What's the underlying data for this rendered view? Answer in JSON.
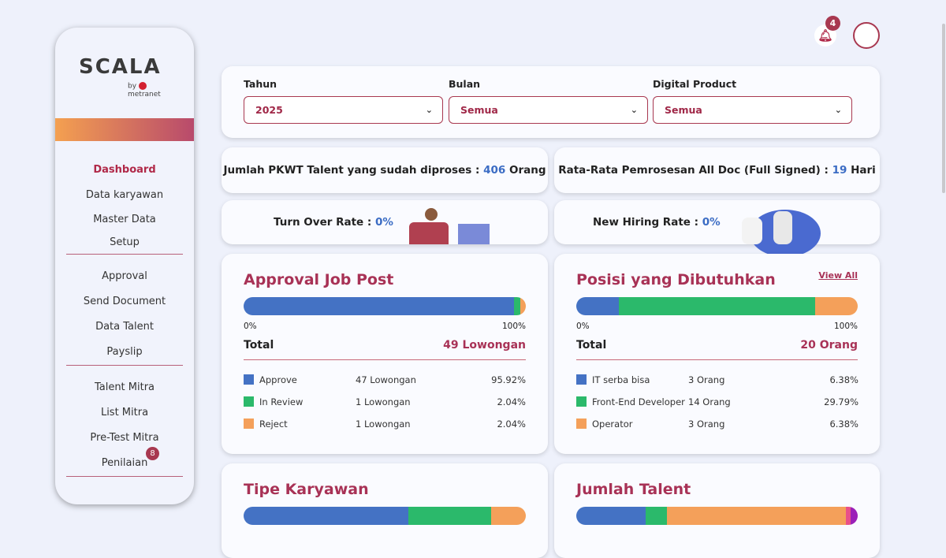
{
  "brand": {
    "logo_text": "SCALA",
    "sub": "metranet",
    "by": "by"
  },
  "sidebar": {
    "items": [
      "Dashboard",
      "Data karyawan",
      "Master Data",
      "Setup",
      "Approval",
      "Send Document",
      "Data Talent",
      "Payslip",
      "Talent Mitra",
      "List Mitra",
      "Pre-Test Mitra",
      "Penilaian"
    ],
    "badge": "8"
  },
  "header": {
    "notif_count": "4"
  },
  "filters": {
    "tahun_label": "Tahun",
    "tahun": "2025",
    "bulan_label": "Bulan",
    "bulan": "Semua",
    "product_label": "Digital Product",
    "product": "Semua"
  },
  "stats": {
    "pkwt_label": "Jumlah PKWT Talent yang sudah diproses : ",
    "pkwt_value": "406",
    "pkwt_unit": " Orang",
    "avg_label": "Rata-Rata Pemrosesan All Doc (Full Signed) : ",
    "avg_value": "19",
    "avg_unit": " Hari",
    "turnover_label": "Turn Over Rate : ",
    "turnover_value": "0%",
    "hiring_label": "New Hiring Rate : ",
    "hiring_value": "0%"
  },
  "colors": {
    "blue": "#4472c4",
    "green": "#2bb96b",
    "orange": "#f4a05a",
    "pink": "#e8508a",
    "purple": "#9b20b8",
    "accent": "#a83256"
  },
  "approval": {
    "title": "Approval Job Post",
    "min": "0%",
    "max": "100%",
    "total_label": "Total",
    "total": "49 Lowongan",
    "items": [
      {
        "name": "Approve",
        "count": "47 Lowongan",
        "pct": "95.92%",
        "share": 95.92,
        "color": "#4472c4"
      },
      {
        "name": "In Review",
        "count": "1 Lowongan",
        "pct": "2.04%",
        "share": 2.04,
        "color": "#2bb96b"
      },
      {
        "name": "Reject",
        "count": "1 Lowongan",
        "pct": "2.04%",
        "share": 2.04,
        "color": "#f4a05a"
      }
    ]
  },
  "posisi": {
    "title": "Posisi yang Dibutuhkan",
    "view_all": "View All",
    "min": "0%",
    "max": "100%",
    "total_label": "Total",
    "total": "20 Orang",
    "items": [
      {
        "name": "IT serba bisa",
        "count": "3 Orang",
        "pct": "6.38%",
        "share": 15,
        "color": "#4472c4"
      },
      {
        "name": "Front-End Developer",
        "count": "14 Orang",
        "pct": "29.79%",
        "share": 70,
        "color": "#2bb96b"
      },
      {
        "name": "Operator",
        "count": "3 Orang",
        "pct": "6.38%",
        "share": 15,
        "color": "#f4a05a"
      }
    ]
  },
  "tipe": {
    "title": "Tipe Karyawan",
    "shares": [
      {
        "share": 58.4,
        "color": "#4472c4"
      },
      {
        "share": 29.3,
        "color": "#2bb96b"
      },
      {
        "share": 12.3,
        "color": "#f4a05a"
      }
    ]
  },
  "talent": {
    "title": "Jumlah Talent",
    "shares": [
      {
        "share": 24.6,
        "color": "#4472c4"
      },
      {
        "share": 7.6,
        "color": "#2bb96b"
      },
      {
        "share": 63.6,
        "color": "#f4a05a"
      },
      {
        "share": 1.7,
        "color": "#e8508a"
      },
      {
        "share": 2.5,
        "color": "#9b20b8"
      }
    ]
  }
}
